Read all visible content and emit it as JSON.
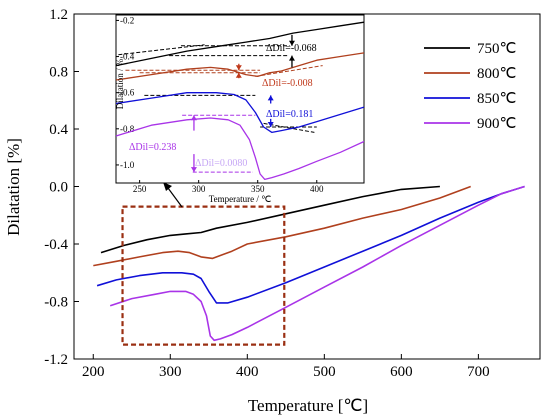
{
  "chart_data": [
    {
      "type": "line",
      "xlabel": "Temperature [℃]",
      "ylabel": "Dilatation [%]",
      "xlim": [
        175,
        780
      ],
      "ylim": [
        -1.2,
        1.2
      ],
      "xticks": [
        "200",
        "300",
        "400",
        "500",
        "600",
        "700"
      ],
      "xtick_values": [
        200,
        300,
        400,
        500,
        600,
        700
      ],
      "yticks": [
        "-1.2",
        "-0.8",
        "-0.4",
        "0.0",
        "0.4",
        "0.8",
        "1.2"
      ],
      "ytick_values": [
        -1.2,
        -0.8,
        -0.4,
        0.0,
        0.4,
        0.8,
        1.2
      ],
      "legend_position": "top-right",
      "highlight_box": {
        "x": [
          238,
          448
        ],
        "y": [
          -1.1,
          -0.14
        ],
        "color": "#9a2f12"
      },
      "series": [
        {
          "name": "750℃",
          "color": "#000000",
          "x": [
            210,
            240,
            270,
            300,
            320,
            340,
            360,
            400,
            450,
            500,
            550,
            600,
            650
          ],
          "y": [
            -0.46,
            -0.41,
            -0.37,
            -0.34,
            -0.33,
            -0.32,
            -0.29,
            -0.25,
            -0.19,
            -0.13,
            -0.07,
            -0.02,
            0.0
          ]
        },
        {
          "name": "800℃",
          "color": "#b0401e",
          "x": [
            200,
            230,
            260,
            290,
            310,
            325,
            340,
            355,
            365,
            380,
            400,
            450,
            500,
            550,
            600,
            650,
            690
          ],
          "y": [
            -0.55,
            -0.52,
            -0.49,
            -0.46,
            -0.45,
            -0.46,
            -0.49,
            -0.5,
            -0.48,
            -0.45,
            -0.4,
            -0.35,
            -0.29,
            -0.22,
            -0.16,
            -0.08,
            0.0
          ]
        },
        {
          "name": "850℃",
          "color": "#1010d8",
          "x": [
            205,
            230,
            260,
            290,
            315,
            330,
            340,
            350,
            360,
            375,
            400,
            450,
            500,
            550,
            600,
            650,
            700,
            730,
            760
          ],
          "y": [
            -0.69,
            -0.65,
            -0.62,
            -0.6,
            -0.6,
            -0.61,
            -0.64,
            -0.73,
            -0.81,
            -0.81,
            -0.77,
            -0.67,
            -0.56,
            -0.45,
            -0.34,
            -0.22,
            -0.11,
            -0.05,
            0.0
          ]
        },
        {
          "name": "900℃",
          "color": "#a934e8",
          "x": [
            222,
            250,
            280,
            300,
            320,
            330,
            340,
            347,
            352,
            357,
            365,
            380,
            400,
            450,
            500,
            550,
            600,
            650,
            700,
            730,
            760
          ],
          "y": [
            -0.83,
            -0.78,
            -0.75,
            -0.73,
            -0.73,
            -0.75,
            -0.8,
            -0.9,
            -1.04,
            -1.07,
            -1.06,
            -1.03,
            -0.98,
            -0.84,
            -0.7,
            -0.56,
            -0.41,
            -0.27,
            -0.13,
            -0.05,
            0.0
          ]
        }
      ]
    },
    {
      "type": "line",
      "name": "inset",
      "xlabel": "Temperature / ℃",
      "ylabel": "Dilatation / %",
      "xlim": [
        230,
        440
      ],
      "ylim": [
        -1.1,
        -0.17
      ],
      "xticks": [
        "250",
        "300",
        "350",
        "400"
      ],
      "xtick_values": [
        250,
        300,
        350,
        400
      ],
      "yticks": [
        "-0.2",
        "-0.4",
        "-0.6",
        "-0.8",
        "-1.0"
      ],
      "ytick_values": [
        -0.2,
        -0.4,
        -0.6,
        -0.8,
        -1.0
      ],
      "series": [
        {
          "name": "750℃",
          "color": "#000000",
          "x": [
            230,
            260,
            290,
            320,
            340,
            360,
            380,
            400,
            420,
            440
          ],
          "y": [
            -0.45,
            -0.41,
            -0.37,
            -0.34,
            -0.32,
            -0.3,
            -0.27,
            -0.25,
            -0.23,
            -0.21
          ]
        },
        {
          "name": "800℃",
          "color": "#b0401e",
          "x": [
            230,
            260,
            290,
            310,
            325,
            340,
            350,
            360,
            370,
            385,
            400,
            420,
            440
          ],
          "y": [
            -0.53,
            -0.5,
            -0.47,
            -0.46,
            -0.47,
            -0.5,
            -0.51,
            -0.49,
            -0.48,
            -0.45,
            -0.42,
            -0.4,
            -0.38
          ]
        },
        {
          "name": "850℃",
          "color": "#1010d8",
          "x": [
            230,
            260,
            290,
            315,
            330,
            340,
            348,
            355,
            362,
            370,
            385,
            400,
            420,
            440
          ],
          "y": [
            -0.66,
            -0.63,
            -0.6,
            -0.6,
            -0.61,
            -0.64,
            -0.71,
            -0.79,
            -0.82,
            -0.81,
            -0.79,
            -0.76,
            -0.72,
            -0.68
          ]
        },
        {
          "name": "900℃",
          "color": "#a934e8",
          "x": [
            230,
            260,
            290,
            310,
            325,
            335,
            343,
            348,
            352,
            356,
            362,
            372,
            385,
            400,
            420,
            440
          ],
          "y": [
            -0.84,
            -0.78,
            -0.75,
            -0.74,
            -0.75,
            -0.78,
            -0.86,
            -0.96,
            -1.05,
            -1.08,
            -1.07,
            -1.05,
            -1.02,
            -0.98,
            -0.93,
            -0.87
          ]
        }
      ],
      "annotations": [
        {
          "text": "ΔDil=-0.068",
          "color": "#000000"
        },
        {
          "text": "ΔDil=-0.008",
          "color": "#c0391b"
        },
        {
          "text": "ΔDil=0.181",
          "color": "#1010d8"
        },
        {
          "text": "ΔDil=0.238",
          "color": "#a934e8"
        },
        {
          "text": "ΔDil=0.0080",
          "color": "#c7a8f5"
        }
      ]
    }
  ]
}
